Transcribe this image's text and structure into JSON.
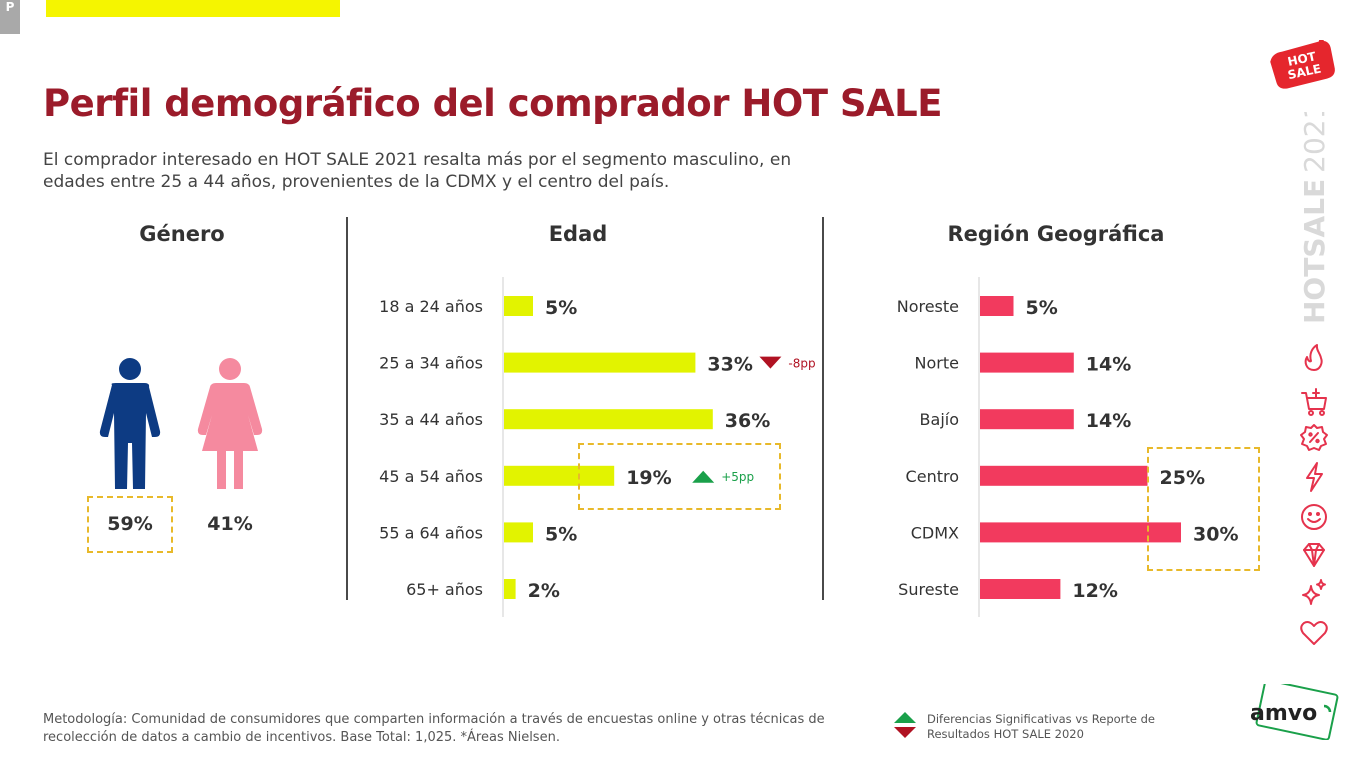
{
  "page": {
    "corner_tab": "P",
    "title": "Perfil demográfico del comprador HOT SALE",
    "subtitle": "El comprador interesado en HOT SALE 2021 resalta más por el segmento masculino, en edades entre 25 a 44 años, provenientes de la CDMX y el centro del país.",
    "methodology": "Metodología: Comunidad de consumidores que comparten información a través de encuestas online y otras técnicas de recolección de datos a cambio de incentivos. Base Total: 1,025. *Áreas Nielsen.",
    "legend_note": "Diferencias Significativas vs Reporte de Resultados HOT SALE 2020",
    "brand_logo_lines": [
      "HOT",
      "SALE"
    ],
    "side_text_bold": "HOTSALE",
    "side_text_light": "2021",
    "amvo_logo": "amvo"
  },
  "colors": {
    "title": "#9b1b2a",
    "age_bar": "#e2f300",
    "region_bar": "#f23a5e",
    "male": "#0d3b83",
    "female": "#f58a9f",
    "highlight_box": "#e8b92a",
    "up": "#1aa04a",
    "down": "#b01222"
  },
  "icons": [
    "flame-icon",
    "cart-icon",
    "discount-badge-icon",
    "lightning-icon",
    "smile-icon",
    "diamond-icon",
    "sparkles-icon",
    "heart-icon"
  ],
  "chart_data": [
    {
      "type": "pictogram",
      "title": "Género",
      "categories": [
        "Hombre",
        "Mujer"
      ],
      "values": [
        59,
        41
      ],
      "labels": [
        "59%",
        "41%"
      ],
      "highlight": "Hombre"
    },
    {
      "type": "bar",
      "orientation": "horizontal",
      "title": "Edad",
      "categories": [
        "18 a 24 años",
        "25 a 34 años",
        "35 a 44 años",
        "45 a 54 años",
        "55 a 64 años",
        "65+ años"
      ],
      "values": [
        5,
        33,
        36,
        19,
        5,
        2
      ],
      "labels": [
        "5%",
        "33%",
        "36%",
        "19%",
        "5%",
        "2%"
      ],
      "annotations": [
        {
          "category": "25 a 34 años",
          "direction": "down",
          "text": "-8pp"
        },
        {
          "category": "45 a 54 años",
          "direction": "up",
          "text": "+5pp"
        }
      ],
      "highlight": [
        "45 a 54 años"
      ]
    },
    {
      "type": "bar",
      "orientation": "horizontal",
      "title": "Región Geográfica",
      "categories": [
        "Noreste",
        "Norte",
        "Bajío",
        "Centro",
        "CDMX",
        "Sureste"
      ],
      "values": [
        5,
        14,
        14,
        25,
        30,
        12
      ],
      "labels": [
        "5%",
        "14%",
        "14%",
        "25%",
        "30%",
        "12%"
      ],
      "highlight": [
        "Centro",
        "CDMX"
      ]
    }
  ]
}
